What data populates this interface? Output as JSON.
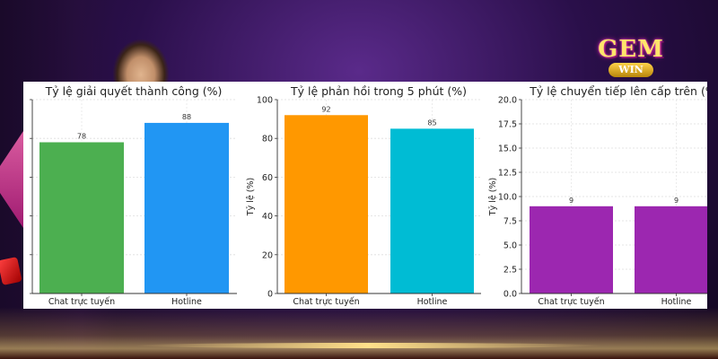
{
  "brand": {
    "logo_main": "GEM",
    "logo_sub": "WIN",
    "colors": {
      "logo_gold": "#ffe46b",
      "logo_glow": "#ff4fd8",
      "background": "#2a0f4a"
    }
  },
  "chart_data": [
    {
      "type": "bar",
      "title": "Tỷ lệ giải quyết thành công (%)",
      "categories": [
        "Chat trực tuyến",
        "Hotline"
      ],
      "values": [
        78,
        88
      ],
      "data_labels": [
        "78",
        "88"
      ],
      "colors": [
        "#4CAF50",
        "#2196F3"
      ],
      "ylabel": "",
      "ylim": [
        0,
        100
      ],
      "yticks": [
        0,
        20,
        40,
        60,
        80,
        100
      ],
      "ytick_labels": [
        "",
        "",
        "",
        "",
        "",
        ""
      ],
      "grid": true
    },
    {
      "type": "bar",
      "title": "Tỷ lệ phản hồi trong 5 phút (%)",
      "categories": [
        "Chat trực tuyến",
        "Hotline"
      ],
      "values": [
        92,
        85
      ],
      "data_labels": [
        "92",
        "85"
      ],
      "colors": [
        "#FF9800",
        "#00BCD4"
      ],
      "ylabel": "Tỷ lệ (%)",
      "ylim": [
        0,
        100
      ],
      "yticks": [
        0,
        20,
        40,
        60,
        80,
        100
      ],
      "ytick_labels": [
        "0",
        "20",
        "40",
        "60",
        "80",
        "100"
      ],
      "grid": true
    },
    {
      "type": "bar",
      "title": "Tỷ lệ chuyển tiếp lên cấp trên (%",
      "categories": [
        "Chat trực tuyến",
        "Hotline"
      ],
      "values": [
        9,
        9
      ],
      "data_labels": [
        "9",
        "9"
      ],
      "colors": [
        "#9C27B0",
        "#9C27B0"
      ],
      "ylabel": "Tỷ lệ (%)",
      "ylim": [
        0,
        20
      ],
      "yticks": [
        0,
        2.5,
        5,
        7.5,
        10,
        12.5,
        15,
        17.5,
        20
      ],
      "ytick_labels": [
        "0.0",
        "2.5",
        "5.0",
        "7.5",
        "10.0",
        "12.5",
        "15.0",
        "17.5",
        "20.0"
      ],
      "grid": true
    }
  ]
}
